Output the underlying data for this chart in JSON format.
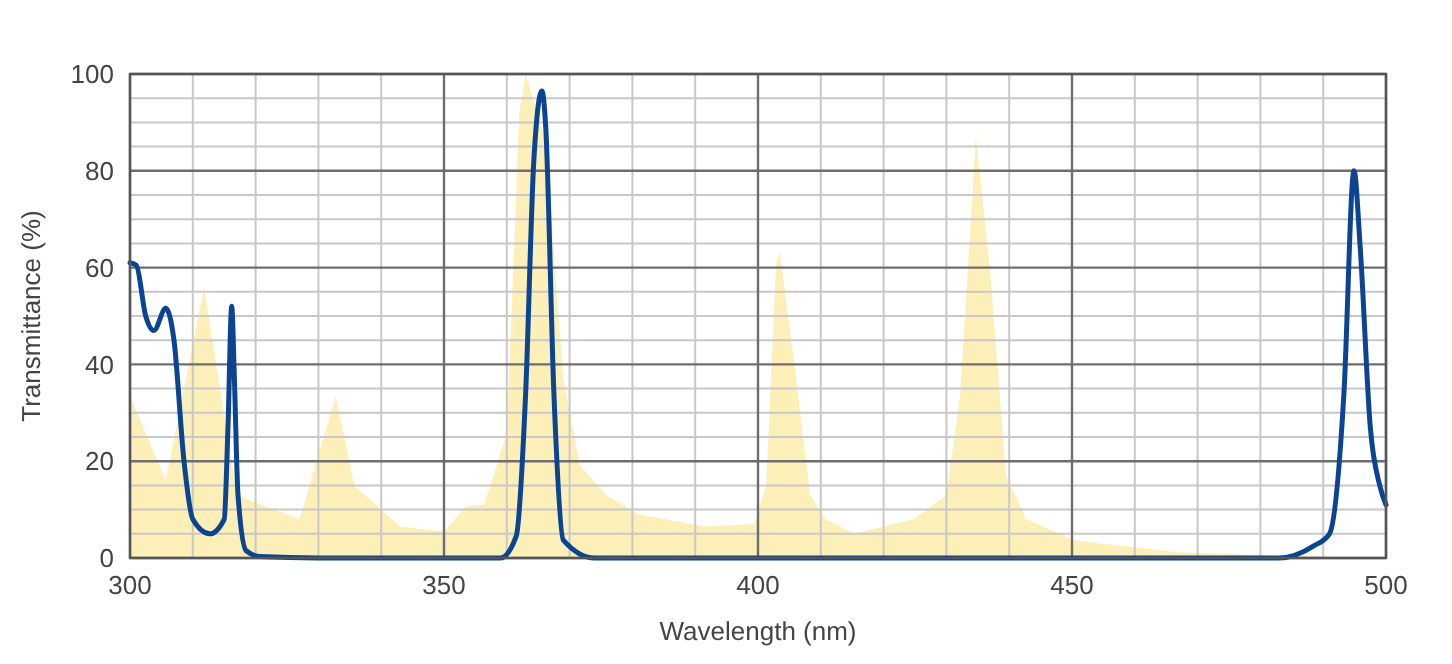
{
  "chart_data": {
    "type": "line",
    "xlabel": "Wavelength (nm)",
    "ylabel": "Transmittance (%)",
    "xlim": [
      300,
      500
    ],
    "ylim": [
      0,
      100
    ],
    "xticks": [
      300,
      350,
      400,
      450,
      500
    ],
    "yticks": [
      0,
      20,
      40,
      60,
      80,
      100
    ],
    "grid": true,
    "marker": "none",
    "line_style": "solid",
    "series": [
      {
        "type": "area",
        "color": "#fcefb8",
        "x": [
          300,
          305.7,
          311.8,
          317,
          327,
          332.8,
          335.7,
          343,
          350,
          353.5,
          356.4,
          360,
          362,
          363,
          366.2,
          369,
          371.7,
          375.8,
          381,
          391.7,
          399.4,
          401.3,
          402.9,
          403.5,
          405.7,
          408.3,
          410.8,
          415.3,
          424.8,
          430,
          432.2,
          434.7,
          437,
          439.5,
          442.7,
          450.3,
          454.5,
          467,
          482,
          500
        ],
        "values": [
          33.5,
          16,
          56,
          13,
          8,
          33.5,
          15,
          6.5,
          5.5,
          10.7,
          11,
          25.6,
          92,
          100,
          86,
          37,
          19,
          13,
          9,
          6.5,
          7,
          15,
          61,
          63,
          41,
          13,
          8,
          5,
          8,
          13,
          34,
          87,
          58.7,
          17,
          8,
          3.7,
          3,
          1.2,
          0.5,
          0
        ]
      },
      {
        "color": "#0b4592",
        "x": [
          300,
          301,
          302.5,
          303.8,
          305.7,
          307,
          308.6,
          310,
          312.7,
          315,
          315.6,
          316.2,
          316.6,
          317.2,
          318.5,
          320.7,
          330,
          359,
          361.5,
          363,
          364.3,
          365.6,
          366.2,
          367.5,
          369,
          374,
          400,
          483,
          488.5,
          491,
          493.3,
          494.9,
          495.9,
          497.5,
          499,
          500
        ],
        "values": [
          61,
          60.5,
          50,
          47,
          51.6,
          45,
          20,
          8,
          5,
          8,
          27,
          52,
          38,
          13,
          1.5,
          0.3,
          0,
          0,
          4.5,
          34,
          82,
          96.5,
          89,
          34,
          3.7,
          0,
          0,
          0,
          2.5,
          5,
          34,
          80,
          64,
          27,
          15,
          11
        ]
      }
    ]
  }
}
